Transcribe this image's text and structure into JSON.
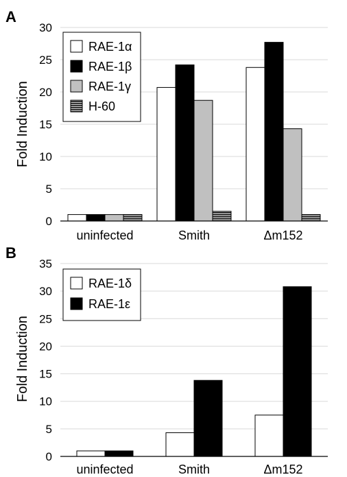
{
  "panels": [
    {
      "letter": "A",
      "chart_data": {
        "type": "bar",
        "title": "",
        "xlabel": "",
        "ylabel": "Fold Induction",
        "ylim": [
          0,
          30
        ],
        "yticks": [
          0,
          5,
          10,
          15,
          20,
          25,
          30
        ],
        "grid": true,
        "legend_position": "top-left",
        "categories": [
          "uninfected",
          "Smith",
          "Δm152"
        ],
        "series": [
          {
            "name": "RAE-1α",
            "fill": "#ffffff",
            "pattern": "solid",
            "values": [
              1.0,
              20.7,
              23.8
            ]
          },
          {
            "name": "RAE-1β",
            "fill": "#000000",
            "pattern": "solid",
            "values": [
              1.0,
              24.2,
              27.7
            ]
          },
          {
            "name": "RAE-1γ",
            "fill": "#c0c0c0",
            "pattern": "solid",
            "values": [
              1.0,
              18.7,
              14.3
            ]
          },
          {
            "name": "H-60",
            "fill": "#b0b0b0",
            "pattern": "stripes",
            "values": [
              1.0,
              1.5,
              1.0
            ]
          }
        ]
      }
    },
    {
      "letter": "B",
      "chart_data": {
        "type": "bar",
        "title": "",
        "xlabel": "",
        "ylabel": "Fold Induction",
        "ylim": [
          0,
          35
        ],
        "yticks": [
          0,
          5,
          10,
          15,
          20,
          25,
          30,
          35
        ],
        "grid": true,
        "legend_position": "top-left",
        "categories": [
          "uninfected",
          "Smith",
          "Δm152"
        ],
        "series": [
          {
            "name": "RAE-1δ",
            "fill": "#ffffff",
            "pattern": "solid",
            "values": [
              1.0,
              4.3,
              7.5
            ]
          },
          {
            "name": "RAE-1ε",
            "fill": "#000000",
            "pattern": "solid",
            "values": [
              1.0,
              13.8,
              30.8
            ]
          }
        ]
      }
    }
  ]
}
